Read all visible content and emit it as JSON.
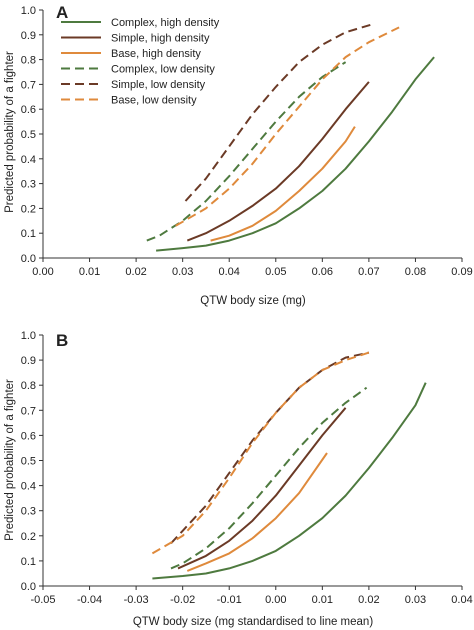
{
  "chart_data": [
    {
      "panel": "A",
      "type": "line",
      "xlabel": "QTW body size (mg)",
      "ylabel": "Predicted probability of a fighter",
      "xlim": [
        0,
        0.09
      ],
      "ylim": [
        0,
        1
      ],
      "xticks": [
        "0.00",
        "0.01",
        "0.02",
        "0.03",
        "0.04",
        "0.05",
        "0.06",
        "0.07",
        "0.08",
        "0.09"
      ],
      "yticks": [
        "0.0",
        "0.1",
        "0.2",
        "0.3",
        "0.4",
        "0.5",
        "0.6",
        "0.7",
        "0.8",
        "0.9",
        "1.0"
      ],
      "legend_position": "top-left",
      "series": [
        {
          "name": "Complex, high density",
          "color": "#4e7a3f",
          "dash": "solid",
          "x": [
            0.0243,
            0.03,
            0.035,
            0.04,
            0.045,
            0.05,
            0.055,
            0.06,
            0.065,
            0.07,
            0.075,
            0.08,
            0.084
          ],
          "y": [
            0.03,
            0.04,
            0.05,
            0.07,
            0.1,
            0.14,
            0.2,
            0.27,
            0.36,
            0.47,
            0.59,
            0.72,
            0.81
          ]
        },
        {
          "name": "Simple, high density",
          "color": "#6b3a26",
          "dash": "solid",
          "x": [
            0.031,
            0.035,
            0.04,
            0.045,
            0.05,
            0.055,
            0.06,
            0.065,
            0.07
          ],
          "y": [
            0.07,
            0.1,
            0.15,
            0.21,
            0.28,
            0.37,
            0.48,
            0.6,
            0.71
          ]
        },
        {
          "name": "Base, high density",
          "color": "#df8a3c",
          "dash": "solid",
          "x": [
            0.036,
            0.04,
            0.045,
            0.05,
            0.055,
            0.06,
            0.065,
            0.067
          ],
          "y": [
            0.07,
            0.09,
            0.13,
            0.19,
            0.27,
            0.36,
            0.47,
            0.53
          ]
        },
        {
          "name": "Complex, low density",
          "color": "#4e7a3f",
          "dash": "dashed",
          "x": [
            0.0223,
            0.025,
            0.03,
            0.035,
            0.04,
            0.045,
            0.05,
            0.055,
            0.06,
            0.065
          ],
          "y": [
            0.07,
            0.09,
            0.15,
            0.23,
            0.33,
            0.44,
            0.55,
            0.65,
            0.73,
            0.79
          ]
        },
        {
          "name": "Simple, low density",
          "color": "#6b3a26",
          "dash": "dashed",
          "x": [
            0.0306,
            0.035,
            0.04,
            0.045,
            0.05,
            0.055,
            0.06,
            0.065,
            0.0703
          ],
          "y": [
            0.23,
            0.32,
            0.45,
            0.58,
            0.69,
            0.79,
            0.86,
            0.91,
            0.94
          ]
        },
        {
          "name": "Base, low density",
          "color": "#df8a3c",
          "dash": "dashed",
          "x": [
            0.0285,
            0.035,
            0.04,
            0.045,
            0.05,
            0.055,
            0.06,
            0.065,
            0.07,
            0.0765
          ],
          "y": [
            0.13,
            0.2,
            0.28,
            0.38,
            0.5,
            0.61,
            0.72,
            0.81,
            0.87,
            0.93
          ]
        }
      ]
    },
    {
      "panel": "B",
      "type": "line",
      "xlabel": "QTW body size (mg standardised to line mean)",
      "ylabel": "Predicted probability of a fighter",
      "xlim": [
        -0.05,
        0.04
      ],
      "ylim": [
        0,
        1
      ],
      "xticks": [
        "-0.05",
        "-0.04",
        "-0.03",
        "-0.02",
        "-0.01",
        "0.00",
        "0.01",
        "0.02",
        "0.03",
        "0.04"
      ],
      "yticks": [
        "0.0",
        "0.1",
        "0.2",
        "0.3",
        "0.4",
        "0.5",
        "0.6",
        "0.7",
        "0.8",
        "0.9",
        "1.0"
      ],
      "series": [
        {
          "name": "Complex, high density",
          "color": "#4e7a3f",
          "dash": "solid",
          "x": [
            -0.0265,
            -0.02,
            -0.015,
            -0.01,
            -0.005,
            0.0,
            0.005,
            0.01,
            0.015,
            0.02,
            0.025,
            0.03,
            0.0322
          ],
          "y": [
            0.03,
            0.04,
            0.05,
            0.07,
            0.1,
            0.14,
            0.2,
            0.27,
            0.36,
            0.47,
            0.59,
            0.72,
            0.81
          ]
        },
        {
          "name": "Simple, high density",
          "color": "#6b3a26",
          "dash": "solid",
          "x": [
            -0.021,
            -0.015,
            -0.01,
            -0.005,
            0.0,
            0.005,
            0.01,
            0.015
          ],
          "y": [
            0.07,
            0.12,
            0.18,
            0.26,
            0.36,
            0.48,
            0.6,
            0.71
          ]
        },
        {
          "name": "Base, high density",
          "color": "#df8a3c",
          "dash": "solid",
          "x": [
            -0.019,
            -0.015,
            -0.01,
            -0.005,
            0.0,
            0.005,
            0.011
          ],
          "y": [
            0.06,
            0.09,
            0.13,
            0.19,
            0.27,
            0.37,
            0.53
          ]
        },
        {
          "name": "Complex, low density",
          "color": "#4e7a3f",
          "dash": "dashed",
          "x": [
            -0.0225,
            -0.02,
            -0.015,
            -0.01,
            -0.005,
            0.0,
            0.005,
            0.01,
            0.015,
            0.0195
          ],
          "y": [
            0.07,
            0.09,
            0.15,
            0.23,
            0.33,
            0.44,
            0.55,
            0.65,
            0.73,
            0.79
          ]
        },
        {
          "name": "Simple, low density",
          "color": "#6b3a26",
          "dash": "dashed",
          "x": [
            -0.0225,
            -0.02,
            -0.015,
            -0.01,
            -0.005,
            0.0,
            0.005,
            0.01,
            0.015,
            0.02
          ],
          "y": [
            0.17,
            0.22,
            0.32,
            0.45,
            0.58,
            0.69,
            0.79,
            0.86,
            0.91,
            0.93
          ]
        },
        {
          "name": "Base, low density",
          "color": "#df8a3c",
          "dash": "dashed",
          "x": [
            -0.0265,
            -0.02,
            -0.015,
            -0.01,
            -0.005,
            0.0,
            0.005,
            0.01,
            0.015,
            0.02
          ],
          "y": [
            0.13,
            0.2,
            0.3,
            0.43,
            0.57,
            0.69,
            0.79,
            0.86,
            0.9,
            0.93
          ]
        }
      ]
    }
  ]
}
